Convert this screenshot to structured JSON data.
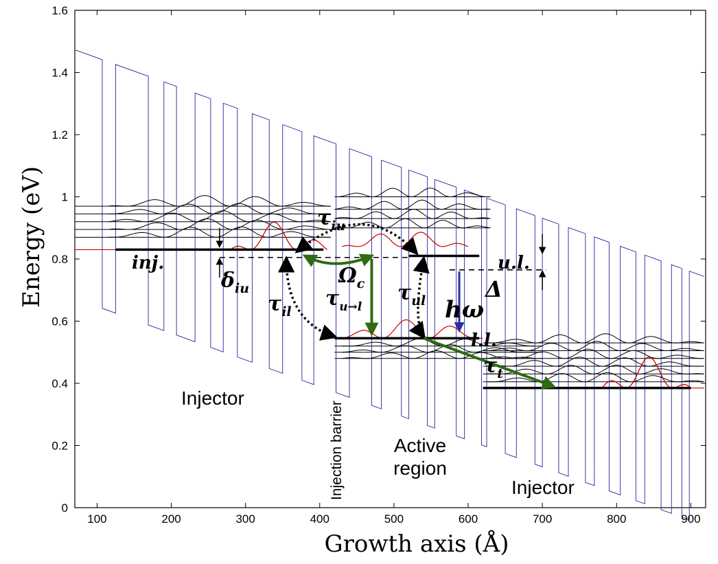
{
  "chart_data": {
    "type": "line",
    "xlabel": "Growth axis (Å)",
    "ylabel": "Energy (eV)",
    "xlim": [
      70,
      920
    ],
    "ylim": [
      0,
      1.6
    ],
    "xticks": [
      100,
      200,
      300,
      400,
      500,
      600,
      700,
      800,
      900
    ],
    "yticks": [
      0,
      0.2,
      0.4,
      0.6,
      0.8,
      1,
      1.2,
      1.4,
      1.6
    ],
    "grid": false,
    "colors": {
      "band": "#3a3aa8",
      "state": "#000000",
      "highlight": "#cc0000",
      "transition": "#2e6b12",
      "emission": "#2b2ba0"
    },
    "levels": [
      {
        "label": "inj.",
        "x": [
          125,
          405
        ],
        "y": 0.83
      },
      {
        "label": "u.l.",
        "x": [
          520,
          615
        ],
        "y": 0.81
      },
      {
        "label": "l.l.",
        "x": [
          420,
          615
        ],
        "y": 0.545
      },
      {
        "label": "",
        "x": [
          620,
          900
        ],
        "y": 0.385
      }
    ],
    "dashed_levels": [
      {
        "x": [
          265,
          520
        ],
        "y": 0.805
      },
      {
        "x": [
          575,
          705
        ],
        "y": 0.765
      }
    ],
    "annotations": [
      {
        "text": "τ",
        "sub": "iu"
      },
      {
        "text": "τ",
        "sub": "il"
      },
      {
        "text": "τ",
        "sub": "u→l"
      },
      {
        "text": "τ",
        "sub": "ul"
      },
      {
        "text": "τ",
        "sub": "t"
      },
      {
        "text": "Ω",
        "sub": "c"
      },
      {
        "text": "δ",
        "sub": "iu"
      },
      {
        "text": "hω",
        "sub": ""
      },
      {
        "text": "Δ",
        "sub": ""
      }
    ],
    "regions": [
      "Injector",
      "Active region",
      "Injector"
    ],
    "barrier_label": "Injection barrier"
  }
}
